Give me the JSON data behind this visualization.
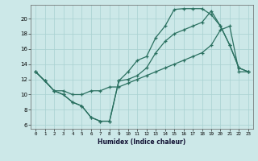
{
  "background_color": "#cce8e8",
  "grid_color": "#a8d0d0",
  "line_color": "#2a7060",
  "xlabel": "Humidex (Indice chaleur)",
  "xlim": [
    -0.5,
    23.5
  ],
  "ylim": [
    5.5,
    21.8
  ],
  "xticks": [
    0,
    1,
    2,
    3,
    4,
    5,
    6,
    7,
    8,
    9,
    10,
    11,
    12,
    13,
    14,
    15,
    16,
    17,
    18,
    19,
    20,
    21,
    22,
    23
  ],
  "yticks": [
    6,
    8,
    10,
    12,
    14,
    16,
    18,
    20
  ],
  "curve1_x": [
    0,
    1,
    2,
    3,
    4,
    5,
    6,
    7,
    8,
    9,
    10,
    11,
    12,
    13,
    14,
    15,
    16,
    17,
    18,
    19,
    20,
    21,
    22,
    23
  ],
  "curve1_y": [
    13.0,
    11.8,
    10.5,
    10.0,
    9.0,
    8.5,
    7.0,
    6.5,
    6.5,
    11.8,
    13.0,
    14.5,
    15.0,
    17.5,
    19.0,
    21.2,
    21.3,
    21.3,
    21.3,
    20.5,
    19.0,
    16.5,
    13.5,
    13.0
  ],
  "curve2_x": [
    0,
    1,
    2,
    3,
    4,
    5,
    6,
    7,
    8,
    9,
    10,
    11,
    12,
    13,
    14,
    15,
    16,
    17,
    18,
    19,
    20,
    21,
    22,
    23
  ],
  "curve2_y": [
    13.0,
    11.8,
    10.5,
    10.0,
    9.0,
    8.5,
    7.0,
    6.5,
    6.5,
    11.8,
    12.0,
    12.5,
    13.5,
    15.5,
    17.0,
    18.0,
    18.5,
    19.0,
    19.5,
    21.0,
    19.0,
    16.5,
    13.5,
    13.0
  ],
  "curve3_x": [
    0,
    1,
    2,
    3,
    4,
    5,
    6,
    7,
    8,
    9,
    10,
    11,
    12,
    13,
    14,
    15,
    16,
    17,
    18,
    19,
    20,
    21,
    22,
    23
  ],
  "curve3_y": [
    13.0,
    11.8,
    10.5,
    10.5,
    10.0,
    10.0,
    10.5,
    10.5,
    11.0,
    11.0,
    11.5,
    12.0,
    12.5,
    13.0,
    13.5,
    14.0,
    14.5,
    15.0,
    15.5,
    16.5,
    18.5,
    19.0,
    13.0,
    13.0
  ]
}
